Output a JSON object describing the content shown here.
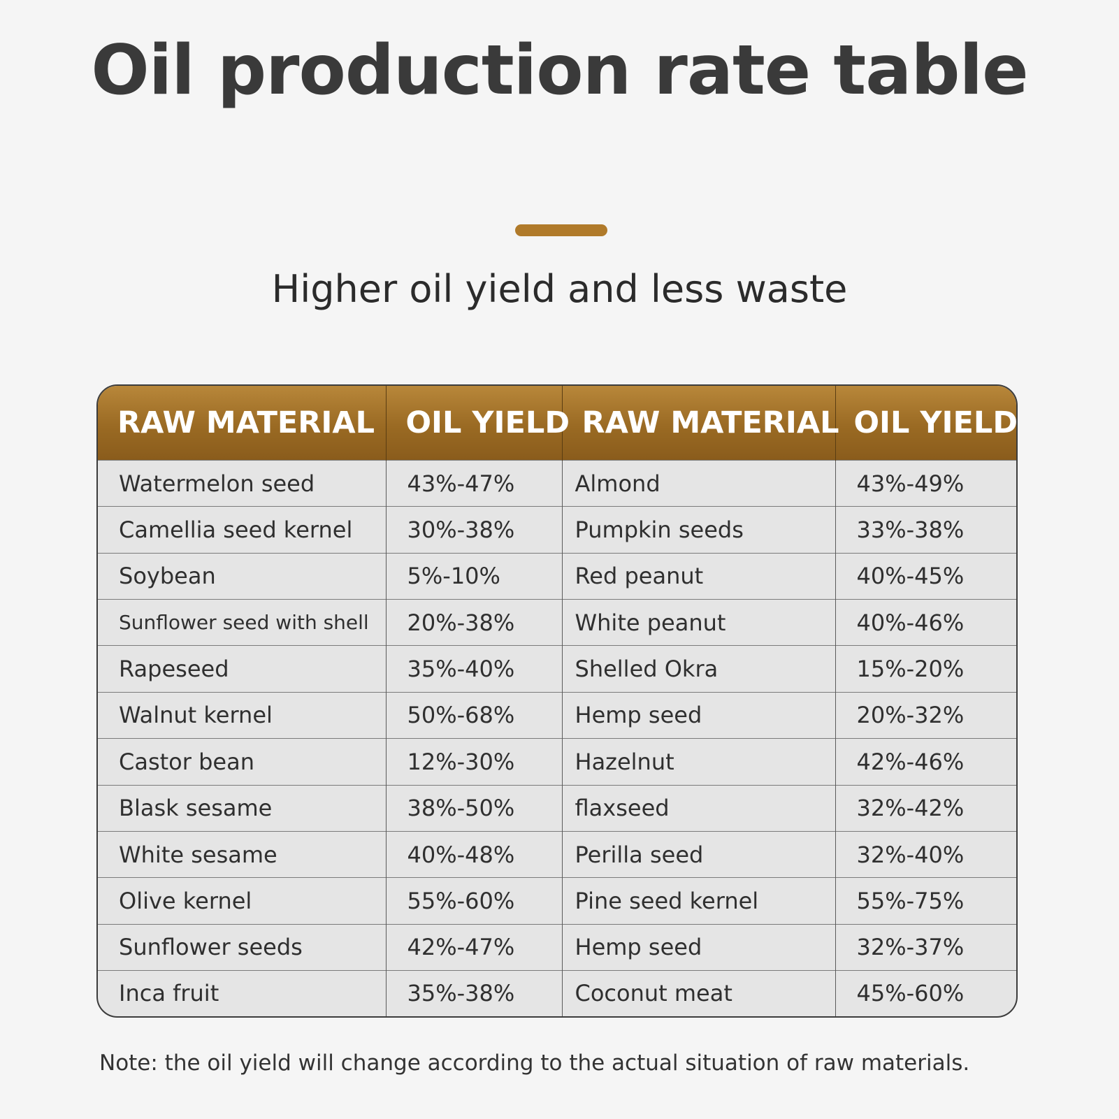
{
  "header": {
    "title": "Oil production rate table",
    "subtitle": "Higher oil yield and less waste"
  },
  "table": {
    "columns": [
      "RAW MATERIAL",
      "OIL YIELD",
      "RAW MATERIAL",
      "OIL YIELD"
    ],
    "rows": [
      [
        "Watermelon seed",
        "43%-47%",
        "Almond",
        "43%-49%"
      ],
      [
        "Camellia seed kernel",
        "30%-38%",
        "Pumpkin seeds",
        "33%-38%"
      ],
      [
        "Soybean",
        "5%-10%",
        "Red peanut",
        "40%-45%"
      ],
      [
        "Sunflower seed with shell",
        "20%-38%",
        "White peanut",
        "40%-46%"
      ],
      [
        "Rapeseed",
        "35%-40%",
        "Shelled Okra",
        "15%-20%"
      ],
      [
        "Walnut kernel",
        "50%-68%",
        "Hemp seed",
        "20%-32%"
      ],
      [
        "Castor bean",
        "12%-30%",
        "Hazelnut",
        "42%-46%"
      ],
      [
        "Blask sesame",
        "38%-50%",
        "flaxseed",
        "32%-42%"
      ],
      [
        "White sesame",
        "40%-48%",
        "Perilla seed",
        "32%-40%"
      ],
      [
        "Olive kernel",
        "55%-60%",
        "Pine seed kernel",
        "55%-75%"
      ],
      [
        "Sunflower seeds",
        "42%-47%",
        "Hemp seed",
        "32%-37%"
      ],
      [
        "Inca fruit",
        "35%-38%",
        "Coconut meat",
        "45%-60%"
      ]
    ]
  },
  "footer": {
    "note": "Note: the oil yield will change according to the actual situation of raw materials."
  },
  "colors": {
    "accent": "#b07a2a",
    "header_bg": "#9a6a23",
    "row_bg": "#e5e5e5",
    "page_bg": "#f5f5f5"
  }
}
